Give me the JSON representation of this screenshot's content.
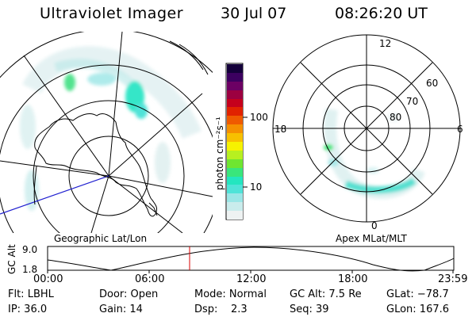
{
  "header": {
    "title": "Ultraviolet Imager",
    "date": "30 Jul 07",
    "time": "08:26:20 UT"
  },
  "colorbar": {
    "label": "photon cm⁻²s⁻¹",
    "tick_100": "100",
    "tick_10": "10",
    "colors": [
      "#eef2f2",
      "#c9ecec",
      "#9ae6e6",
      "#4fe3d8",
      "#23e6c0",
      "#39e67c",
      "#6fe630",
      "#b7f020",
      "#f6f200",
      "#f7c000",
      "#f59000",
      "#ef5a00",
      "#e12200",
      "#c5001c",
      "#9c0040",
      "#6c0064",
      "#3c0060",
      "#14003a"
    ]
  },
  "left_panel": {
    "caption": "Geographic Lat/Lon"
  },
  "right_panel": {
    "caption": "Apex MLat/MLT",
    "mlt_labels": {
      "top": "12",
      "bottom": "0",
      "left": "18",
      "right": "6"
    },
    "lat_labels": [
      "60",
      "70",
      "80"
    ]
  },
  "timeline": {
    "axis_label": "GC Alt",
    "y_max": "9.0",
    "y_min": "1.8",
    "ticks": [
      "00:00",
      "06:00",
      "12:00",
      "18:00",
      "23:59"
    ],
    "marker_color": "#d80000"
  },
  "footer": {
    "row1": {
      "flt": "Flt: LBHL",
      "door": "Door: Open",
      "mode": "Mode: Normal",
      "gcalt": "GC Alt: 7.5 Re",
      "glat": "GLat: −78.7"
    },
    "row2": {
      "ip": "IP: 36.0",
      "gain": "Gain: 14",
      "dsp": "Dsp:    2.3",
      "seq": "Seq: 39",
      "glon": "GLon: 167.6"
    }
  }
}
